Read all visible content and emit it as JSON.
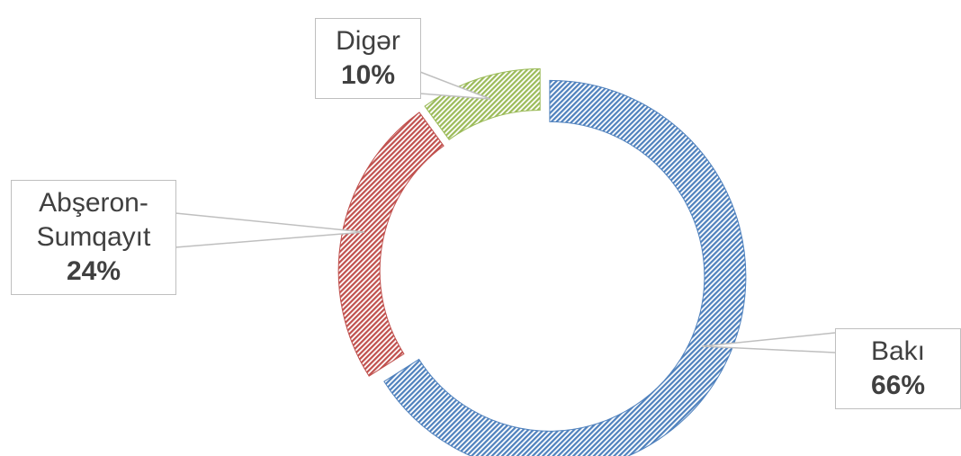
{
  "chart_data": {
    "type": "donut",
    "categories": [
      "Bakı",
      "Abşeron-Sumqayıt",
      "Digər"
    ],
    "values": [
      66,
      24,
      10
    ],
    "value_labels": [
      "66%",
      "24%",
      "10%"
    ],
    "colors": [
      "#4f81bd",
      "#c0504d",
      "#9bbb59"
    ]
  }
}
